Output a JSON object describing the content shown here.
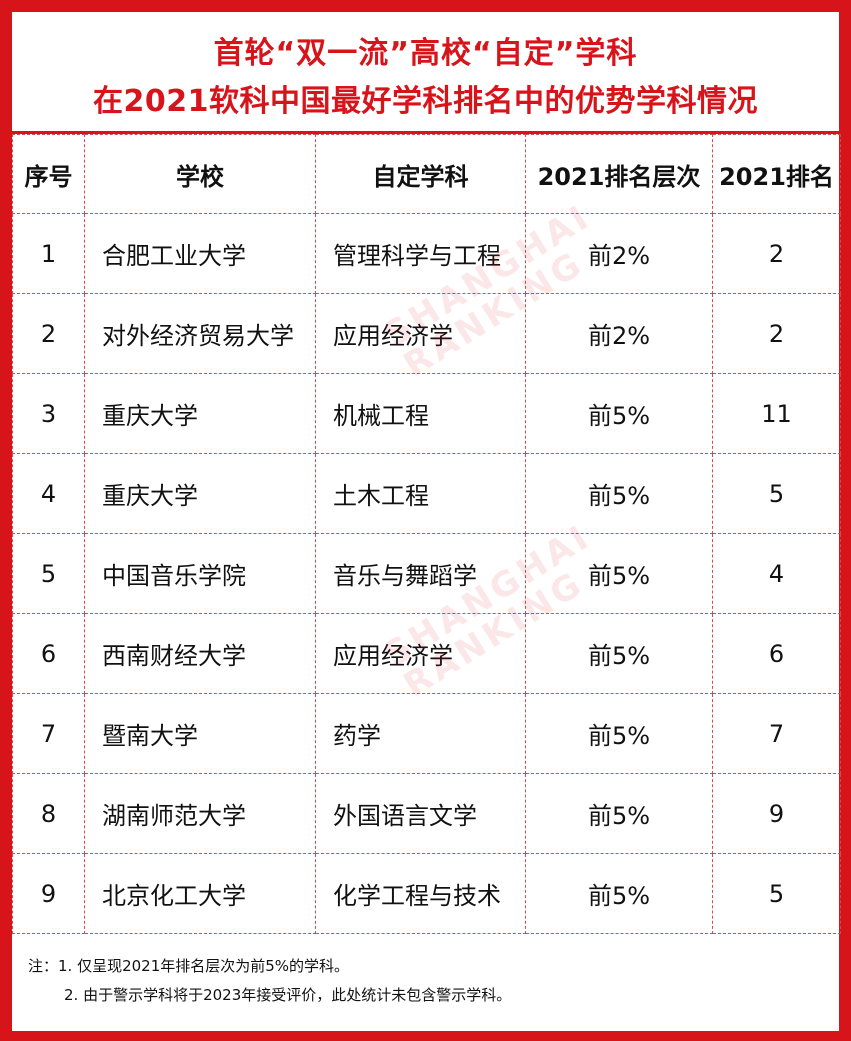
{
  "title": {
    "line1": "首轮“双一流”高校“自定”学科",
    "line2": "在2021软科中国最好学科排名中的优势学科情况"
  },
  "table": {
    "headers": [
      "序号",
      "学校",
      "自定学科",
      "2021排名层次",
      "2021排名"
    ],
    "rows": [
      {
        "idx": "1",
        "school": "合肥工业大学",
        "subject": "管理科学与工程",
        "tier": "前2%",
        "rank": "2"
      },
      {
        "idx": "2",
        "school": "对外经济贸易大学",
        "subject": "应用经济学",
        "tier": "前2%",
        "rank": "2"
      },
      {
        "idx": "3",
        "school": "重庆大学",
        "subject": "机械工程",
        "tier": "前5%",
        "rank": "11"
      },
      {
        "idx": "4",
        "school": "重庆大学",
        "subject": "土木工程",
        "tier": "前5%",
        "rank": "5"
      },
      {
        "idx": "5",
        "school": "中国音乐学院",
        "subject": "音乐与舞蹈学",
        "tier": "前5%",
        "rank": "4"
      },
      {
        "idx": "6",
        "school": "西南财经大学",
        "subject": "应用经济学",
        "tier": "前5%",
        "rank": "6"
      },
      {
        "idx": "7",
        "school": "暨南大学",
        "subject": "药学",
        "tier": "前5%",
        "rank": "7"
      },
      {
        "idx": "8",
        "school": "湖南师范大学",
        "subject": "外国语言文学",
        "tier": "前5%",
        "rank": "9"
      },
      {
        "idx": "9",
        "school": "北京化工大学",
        "subject": "化学工程与技术",
        "tier": "前5%",
        "rank": "5"
      }
    ]
  },
  "notes": {
    "line1": "注：1. 仅呈现2021年排名层次为前5%的学科。",
    "line2": "2. 由于警示学科将于2023年接受评价，此处统计未包含警示学科。"
  },
  "watermark": {
    "text1": "SHANGHAI",
    "text2": "RANKING"
  },
  "colors": {
    "accent": "#d8141b",
    "grid": "#d94a4a"
  }
}
